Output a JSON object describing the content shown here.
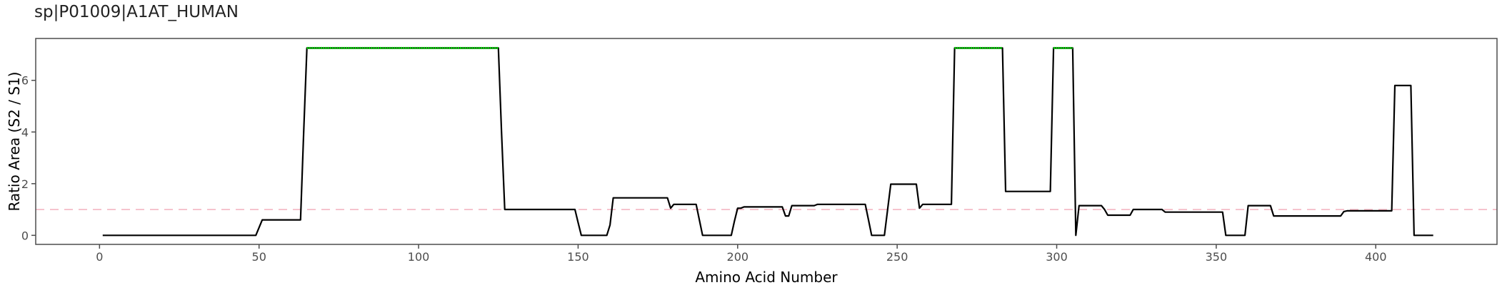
{
  "chart_data": {
    "type": "line",
    "title": "sp|P01009|A1AT_HUMAN",
    "xlabel": "Amino Acid Number",
    "ylabel": "Ratio Area (S2 / S1)",
    "xlim": [
      -20,
      438
    ],
    "ylim": [
      -0.35,
      7.62
    ],
    "xticks": [
      0,
      50,
      100,
      150,
      200,
      250,
      300,
      350,
      400
    ],
    "yticks": [
      0,
      2,
      4,
      6
    ],
    "reference_line": {
      "y": 1,
      "style": "dashed",
      "color": "#f4b6c2"
    },
    "grid": false,
    "colors": {
      "line": "#000000",
      "highlight": "#00dd00",
      "border": "#4d4d4d"
    },
    "series": [
      {
        "x": [
          1,
          49,
          50,
          51,
          63,
          64,
          65,
          125,
          126,
          127,
          149,
          150,
          151,
          159,
          160,
          161,
          178,
          179,
          180,
          187,
          188,
          189,
          198,
          199,
          200,
          201,
          202,
          214,
          215,
          216,
          217,
          218,
          224,
          225,
          226,
          240,
          241,
          242,
          246,
          247,
          248,
          256,
          257,
          258,
          267,
          268,
          269,
          283,
          284,
          285,
          298,
          299,
          300,
          305,
          306,
          307,
          314,
          315,
          316,
          323,
          324,
          325,
          333,
          334,
          335,
          352,
          353,
          354,
          359,
          360,
          361,
          367,
          368,
          369,
          389,
          390,
          391,
          405,
          406,
          407,
          411,
          412,
          413,
          418
        ],
        "y": [
          0,
          0,
          0.3,
          0.6,
          0.6,
          4.0,
          7.25,
          7.25,
          4.0,
          1.0,
          1.0,
          0.5,
          0.0,
          0.0,
          0.4,
          1.45,
          1.45,
          1.05,
          1.2,
          1.2,
          0.6,
          0.0,
          0.0,
          0.55,
          1.05,
          1.05,
          1.1,
          1.1,
          0.75,
          0.75,
          1.15,
          1.15,
          1.15,
          1.2,
          1.2,
          1.2,
          0.6,
          0.0,
          0.0,
          1.0,
          1.98,
          1.98,
          1.05,
          1.2,
          1.2,
          7.25,
          7.25,
          7.25,
          1.7,
          1.7,
          1.7,
          7.25,
          7.25,
          7.25,
          0.0,
          1.15,
          1.15,
          1.0,
          0.78,
          0.78,
          1.0,
          1.0,
          1.0,
          0.9,
          0.9,
          0.9,
          0.0,
          0.0,
          0.0,
          1.15,
          1.15,
          1.15,
          0.75,
          0.75,
          0.75,
          0.92,
          0.95,
          0.95,
          5.8,
          5.8,
          5.8,
          0.0,
          0.0,
          0.0
        ]
      }
    ],
    "highlight_segments": [
      {
        "x": [
          65,
          125
        ],
        "y": 7.25
      },
      {
        "x": [
          268,
          283
        ],
        "y": 7.25
      },
      {
        "x": [
          299,
          305
        ],
        "y": 7.25
      }
    ]
  }
}
